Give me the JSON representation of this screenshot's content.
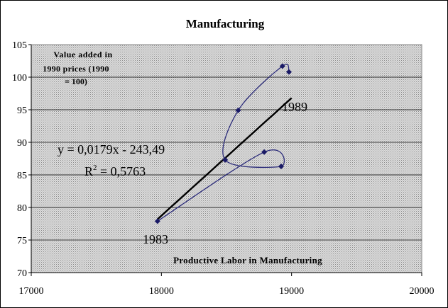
{
  "chart_data": {
    "type": "scatter",
    "title": "Manufacturing",
    "xlabel": "Productive Labor  in Manufacturing",
    "ylabel_lines": [
      "Value added in",
      "1990 prices (1990",
      "= 100)"
    ],
    "xlim": [
      17000,
      20000
    ],
    "ylim": [
      70,
      105
    ],
    "xticks": [
      17000,
      18000,
      19000,
      20000
    ],
    "yticks": [
      70,
      75,
      80,
      85,
      90,
      95,
      100,
      105
    ],
    "grid": "horizontal",
    "points": [
      {
        "x": 17970,
        "y": 77.9
      },
      {
        "x": 18790,
        "y": 88.5
      },
      {
        "x": 18920,
        "y": 86.3
      },
      {
        "x": 18490,
        "y": 87.3
      },
      {
        "x": 18590,
        "y": 94.9
      },
      {
        "x": 18930,
        "y": 101.7
      },
      {
        "x": 18980,
        "y": 100.8
      }
    ],
    "trendline": {
      "x": [
        17970,
        19000
      ],
      "y": [
        78.2,
        96.8
      ],
      "equation": "y = 0,0179x - 243,49",
      "r2_prefix": "R",
      "r2_sup": "2",
      "r2_value": " = 0,5763"
    },
    "annotations": {
      "start": "1983",
      "end": "1989"
    },
    "colors": {
      "plot_bg": "#c0c0c0",
      "series": "#2b2b7a",
      "marker": "#1a1a66",
      "trend": "#000000",
      "grid": "#000000"
    }
  }
}
